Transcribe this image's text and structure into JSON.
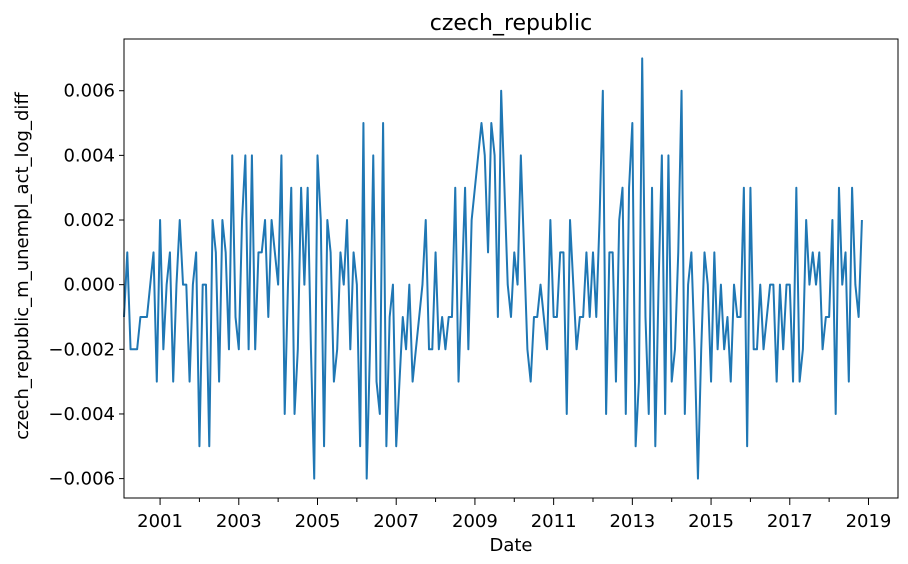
{
  "chart_data": {
    "type": "line",
    "title": "czech_republic",
    "xlabel": "Date",
    "ylabel": "czech_republic_m_unempl_act_log_diff",
    "x_start": "2000-02",
    "x_end": "2019-10",
    "xlim": [
      "2000-02",
      "2019-10"
    ],
    "ylim": [
      -0.0066,
      0.0076
    ],
    "x_ticks": [
      "2001",
      "2003",
      "2005",
      "2007",
      "2009",
      "2011",
      "2013",
      "2015",
      "2017",
      "2019"
    ],
    "y_ticks": [
      "0.006",
      "0.004",
      "0.002",
      "0.000",
      "−0.002",
      "−0.004",
      "−0.006"
    ],
    "grid": false,
    "series": [
      {
        "color": "#1f77b4",
        "values": [
          -0.001,
          0.001,
          -0.002,
          -0.002,
          -0.002,
          -0.001,
          -0.001,
          -0.001,
          0.0,
          0.001,
          -0.003,
          0.002,
          -0.002,
          0.0,
          0.001,
          -0.003,
          0.0,
          0.002,
          0.0,
          0.0,
          -0.003,
          0.0,
          0.001,
          -0.005,
          0.0,
          0.0,
          -0.005,
          0.002,
          0.001,
          -0.003,
          0.002,
          0.001,
          -0.002,
          0.004,
          -0.001,
          -0.002,
          0.002,
          0.004,
          -0.002,
          0.004,
          -0.002,
          0.001,
          0.001,
          0.002,
          -0.001,
          0.002,
          0.001,
          0.0,
          0.004,
          -0.004,
          0.0,
          0.003,
          -0.004,
          -0.002,
          0.003,
          0.0,
          0.003,
          -0.002,
          -0.006,
          0.004,
          0.002,
          -0.005,
          0.002,
          0.001,
          -0.003,
          -0.002,
          0.001,
          0.0,
          0.002,
          -0.002,
          0.001,
          0.0,
          -0.005,
          0.005,
          -0.006,
          -0.002,
          0.004,
          -0.003,
          -0.004,
          0.005,
          -0.005,
          -0.001,
          0.0,
          -0.005,
          -0.003,
          -0.001,
          -0.002,
          0.0,
          -0.003,
          -0.002,
          -0.001,
          0.0,
          0.002,
          -0.002,
          -0.002,
          0.001,
          -0.002,
          -0.001,
          -0.002,
          -0.001,
          -0.001,
          0.003,
          -0.003,
          0.0,
          0.003,
          -0.002,
          0.002,
          0.003,
          0.004,
          0.005,
          0.004,
          0.001,
          0.005,
          0.004,
          -0.001,
          0.006,
          0.003,
          0.0,
          -0.001,
          0.001,
          0.0,
          0.004,
          0.001,
          -0.002,
          -0.003,
          -0.001,
          -0.001,
          0.0,
          -0.001,
          -0.002,
          0.002,
          -0.001,
          -0.001,
          0.001,
          0.001,
          -0.004,
          0.002,
          0.0,
          -0.002,
          -0.001,
          -0.001,
          0.001,
          -0.001,
          0.001,
          -0.001,
          0.002,
          0.006,
          -0.004,
          0.001,
          0.001,
          -0.003,
          0.002,
          0.003,
          -0.004,
          0.003,
          0.005,
          -0.005,
          -0.003,
          0.007,
          -0.001,
          -0.004,
          0.003,
          -0.005,
          0.0,
          0.004,
          -0.004,
          0.004,
          -0.003,
          -0.002,
          0.001,
          0.006,
          -0.004,
          0.0,
          0.001,
          -0.002,
          -0.006,
          -0.002,
          0.001,
          0.0,
          -0.003,
          0.001,
          -0.002,
          0.0,
          -0.002,
          -0.001,
          -0.003,
          0.0,
          -0.001,
          -0.001,
          0.003,
          -0.005,
          0.003,
          -0.002,
          -0.002,
          0.0,
          -0.002,
          -0.001,
          0.0,
          0.0,
          -0.003,
          0.0,
          -0.002,
          0.0,
          0.0,
          -0.003,
          0.003,
          -0.003,
          -0.002,
          0.002,
          0.0,
          0.001,
          0.0,
          0.001,
          -0.002,
          -0.001,
          -0.001,
          0.002,
          -0.004,
          0.003,
          0.0,
          0.001,
          -0.003,
          0.003,
          0.0,
          -0.001,
          0.002
        ]
      }
    ]
  }
}
